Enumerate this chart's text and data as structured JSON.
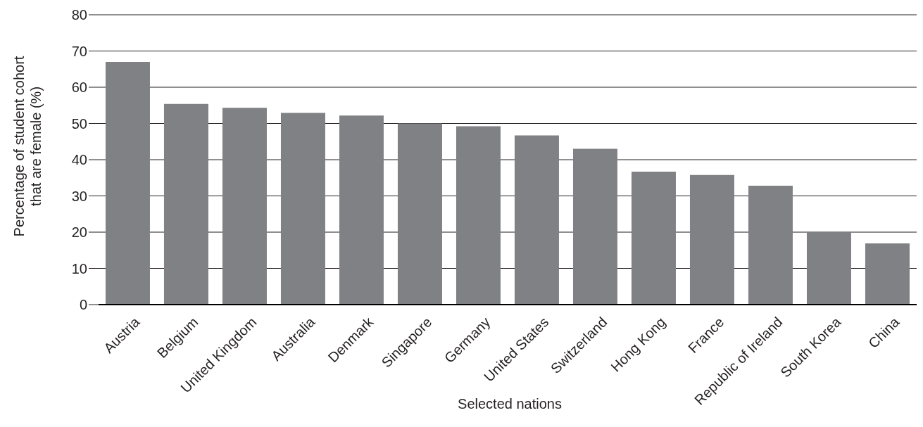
{
  "chart_data": {
    "type": "bar",
    "xlabel": "Selected nations",
    "ylabel": "Percentage of student cohort\nthat are female (%)",
    "categories": [
      "Austria",
      "Belgium",
      "United Kingdom",
      "Australia",
      "Denmark",
      "Singapore",
      "Germany",
      "United States",
      "Switzerland",
      "Hong Kong",
      "France",
      "Republic of Ireland",
      "South Korea",
      "China"
    ],
    "values": [
      67.0,
      55.4,
      54.3,
      52.9,
      52.2,
      50.0,
      49.2,
      46.7,
      43.0,
      36.7,
      35.8,
      32.8,
      20.0,
      16.9
    ],
    "color": "#808184",
    "ylim": [
      0,
      80
    ],
    "yticks": [
      0,
      10,
      20,
      30,
      40,
      50,
      60,
      70,
      80
    ],
    "grid": "y"
  }
}
